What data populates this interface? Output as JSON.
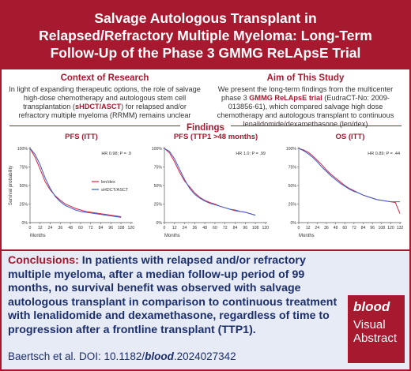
{
  "header": {
    "title": "Salvage Autologous Transplant in Relapsed/Refractory Multiple Myeloma: Long-Term Follow-Up of the Phase 3 GMMG ReLApsE Trial"
  },
  "context": {
    "title": "Context of Research",
    "text": [
      "In light of expanding therapeutic options, the role of salvage high-dose chemotherapy and autologous stem cell transplantation (",
      "sHDCT/ASCT",
      ") for relapsed and/or refractory multiple myeloma (RRMM) remains unclear"
    ]
  },
  "aim": {
    "title": "Aim of This Study",
    "text": [
      "We present the long-term findings from the multicenter phase 3 ",
      "GMMG ReLApsE trial",
      " (EudraCT-No: 2009-013856-61), which compared salvage high dose chemotherapy and autologous transplant to continuous lenalidomide/dexamethasone (len/dex)"
    ]
  },
  "findings": {
    "title": "Findings"
  },
  "chart_data": [
    {
      "type": "line",
      "title": "PFS (ITT)",
      "annotation": "HR 0.98; P = .9",
      "xlabel": "Months",
      "ylabel": "Survival probability",
      "legend": "right",
      "x": [
        0,
        6,
        12,
        18,
        24,
        30,
        36,
        42,
        48,
        54,
        60,
        66,
        72,
        78,
        84,
        90,
        96,
        102,
        108
      ],
      "xlim": [
        0,
        122
      ],
      "xticks": [
        0,
        12,
        24,
        36,
        48,
        60,
        72,
        84,
        96,
        108,
        120
      ],
      "ylim": [
        0,
        100
      ],
      "yticks": [
        {
          "value": 0,
          "label": "0%"
        },
        {
          "value": 25,
          "label": "25%"
        },
        {
          "value": 50,
          "label": "50%"
        },
        {
          "value": 75,
          "label": "75%"
        },
        {
          "value": 100,
          "label": "100%"
        }
      ],
      "series": [
        {
          "name": "len/dex",
          "color": "#d7263d",
          "values": [
            100,
            88,
            72,
            55,
            44,
            36,
            30,
            25,
            22,
            19,
            17,
            15,
            14,
            13,
            12,
            11,
            10,
            9,
            8
          ]
        },
        {
          "name": "sHDCT/ASCT",
          "color": "#3a5fcd",
          "values": [
            100,
            92,
            78,
            60,
            46,
            35,
            28,
            23,
            20,
            17,
            15,
            14,
            13,
            12,
            11,
            10,
            9,
            8,
            7
          ]
        }
      ]
    },
    {
      "type": "line",
      "title": "PFS (TTP1 >48 months)",
      "annotation": "HR 1.0; P = .99",
      "xlabel": "Months",
      "x": [
        0,
        6,
        12,
        18,
        24,
        30,
        36,
        42,
        48,
        54,
        60,
        66,
        72,
        78,
        84,
        90,
        96,
        102,
        108
      ],
      "xlim": [
        0,
        122
      ],
      "xticks": [
        0,
        12,
        24,
        36,
        48,
        60,
        72,
        84,
        96,
        108,
        120
      ],
      "ylim": [
        0,
        100
      ],
      "yticks": [
        {
          "value": 0,
          "label": "0%"
        },
        {
          "value": 25,
          "label": "25%"
        },
        {
          "value": 50,
          "label": "50%"
        },
        {
          "value": 75,
          "label": "75%"
        },
        {
          "value": 100,
          "label": "100%"
        }
      ],
      "series": [
        {
          "color": "#d7263d",
          "values": [
            100,
            94,
            82,
            68,
            56,
            48,
            40,
            34,
            30,
            27,
            25,
            22,
            20,
            18,
            16,
            15,
            14,
            12,
            10
          ]
        },
        {
          "color": "#3a5fcd",
          "values": [
            100,
            96,
            86,
            72,
            58,
            46,
            38,
            33,
            29,
            26,
            24,
            22,
            20,
            18,
            17,
            15,
            14,
            12,
            10
          ]
        }
      ]
    },
    {
      "type": "line",
      "title": "OS (ITT)",
      "annotation": "HR 0.89; P = .44",
      "xlabel": "Months",
      "x": [
        0,
        6,
        12,
        18,
        24,
        30,
        36,
        42,
        48,
        54,
        60,
        66,
        72,
        78,
        84,
        90,
        96,
        102,
        108,
        114,
        120,
        126,
        132
      ],
      "xlim": [
        0,
        134
      ],
      "xticks": [
        0,
        12,
        24,
        36,
        48,
        60,
        72,
        84,
        96,
        108,
        120,
        132
      ],
      "ylim": [
        0,
        100
      ],
      "yticks": [
        {
          "value": 0,
          "label": "0%"
        },
        {
          "value": 25,
          "label": "25%"
        },
        {
          "value": 50,
          "label": "50%"
        },
        {
          "value": 75,
          "label": "75%"
        },
        {
          "value": 100,
          "label": "100%"
        }
      ],
      "series": [
        {
          "color": "#d7263d",
          "values": [
            100,
            98,
            95,
            90,
            84,
            78,
            71,
            65,
            60,
            55,
            50,
            46,
            43,
            40,
            37,
            35,
            33,
            31,
            30,
            29,
            28,
            27,
            12
          ]
        },
        {
          "color": "#3a5fcd",
          "values": [
            100,
            97,
            93,
            88,
            82,
            75,
            69,
            63,
            58,
            53,
            49,
            45,
            42,
            40,
            37,
            35,
            33,
            31,
            30,
            29,
            28,
            28,
            28
          ]
        }
      ]
    }
  ],
  "conclusions": {
    "label": "Conclusions:",
    "text": " In patients with relapsed and/or refractory multiple myeloma, after a median follow-up period of 99 months, no survival benefit was observed with salvage autologous transplant in comparison to continuous treatment with lenalidomide and dexamethasone, regardless of time to progression after a frontline transplant (TTP1)."
  },
  "citation": [
    "Baertsch et al. DOI: 10.1182/",
    "blood",
    ".2024027342"
  ],
  "logo": {
    "brand": "blood",
    "line1": "Visual",
    "line2": "Abstract"
  }
}
